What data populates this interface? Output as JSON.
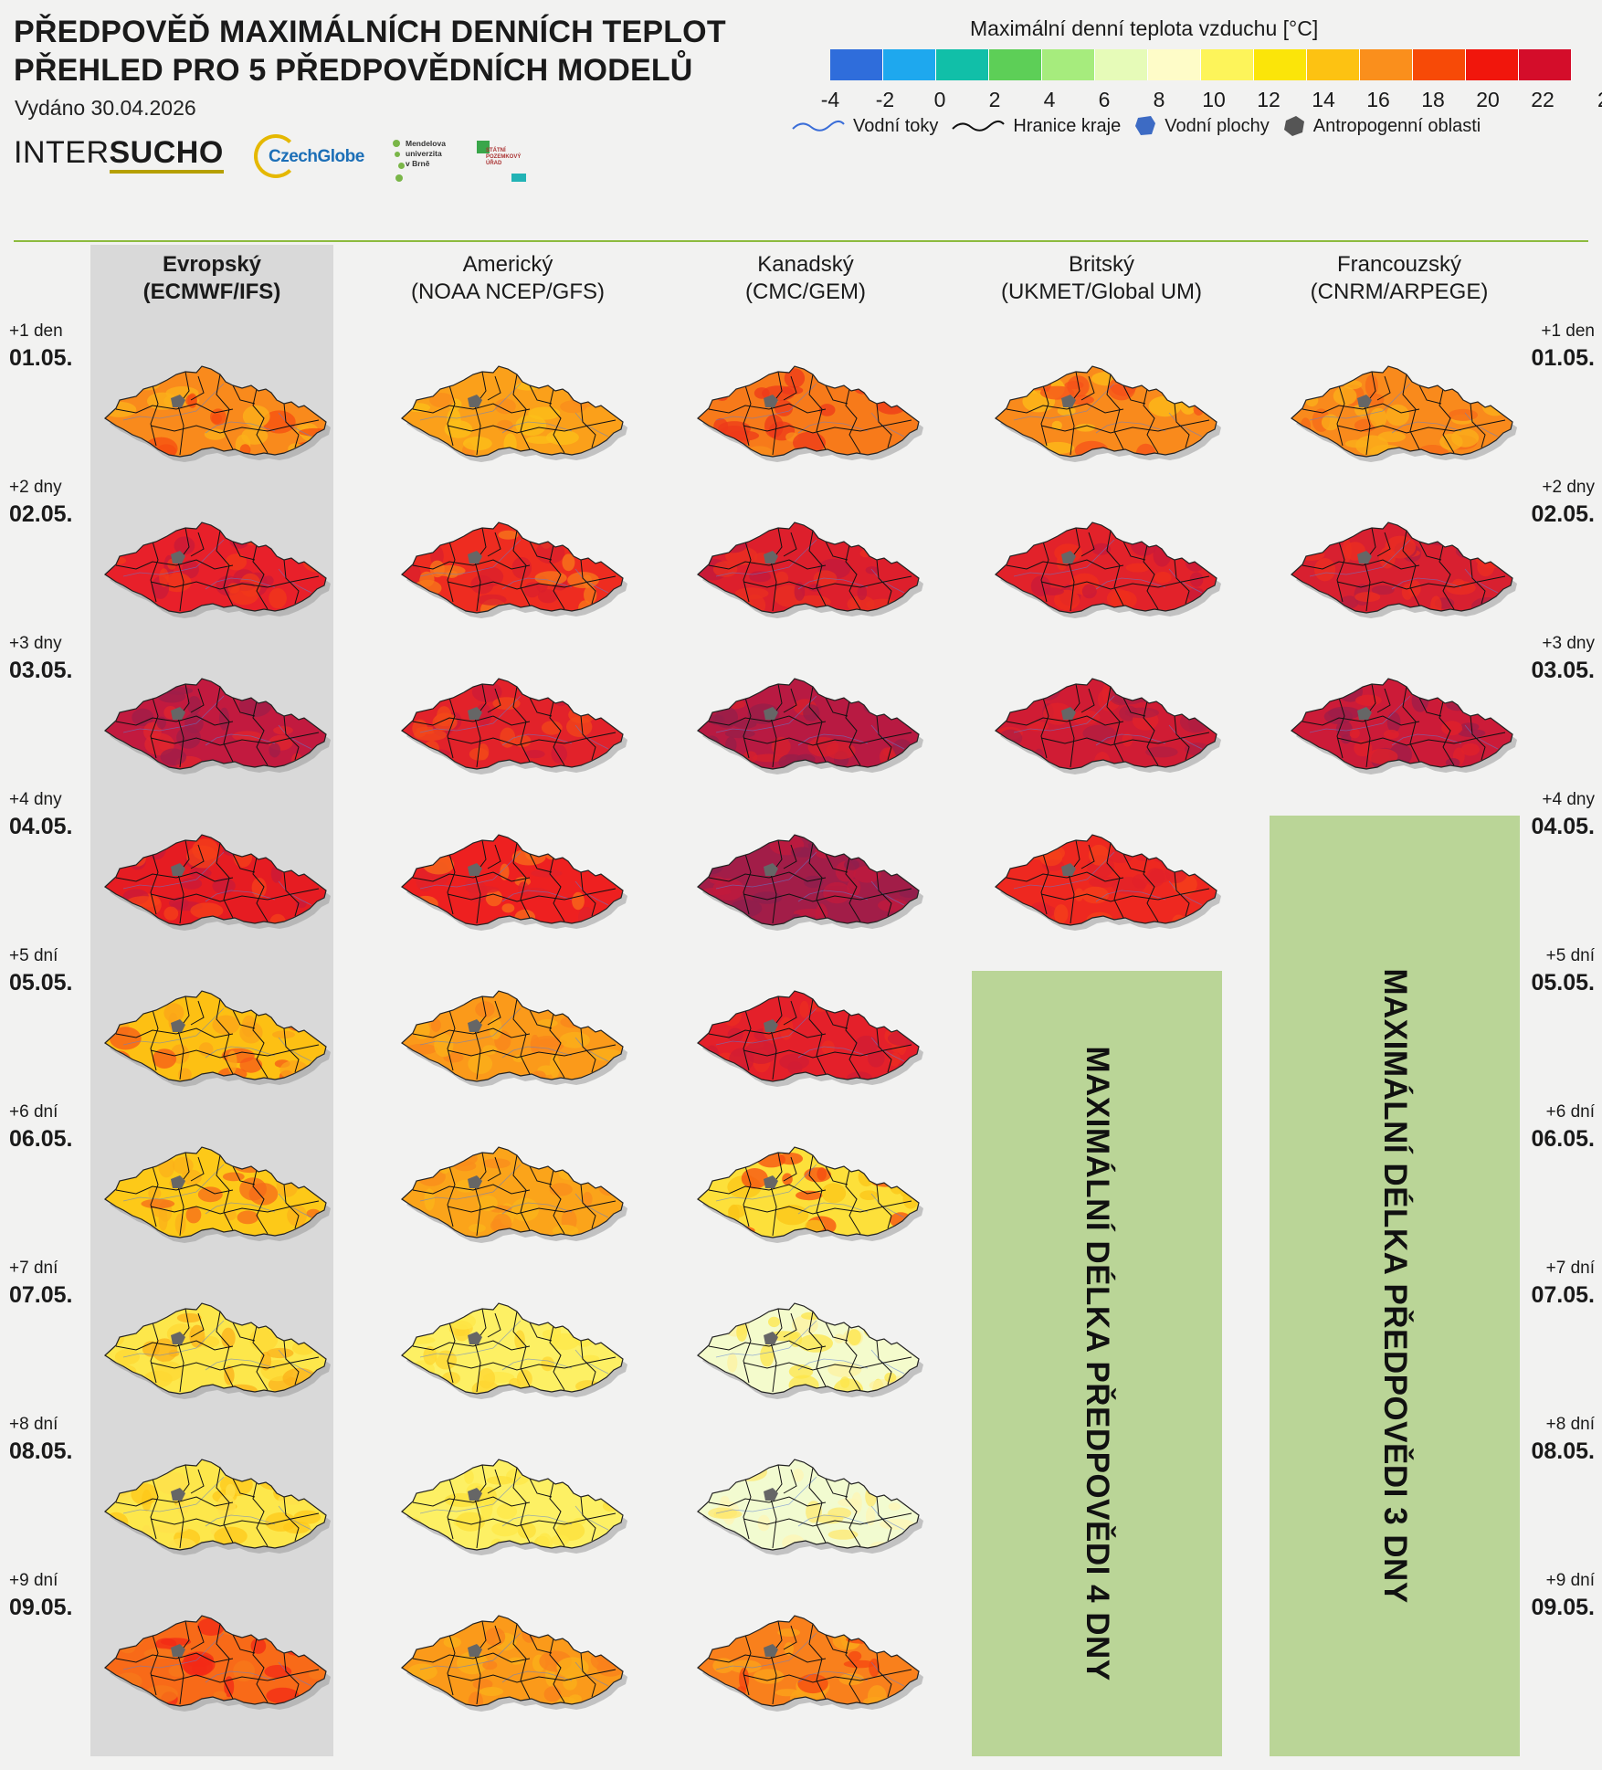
{
  "header": {
    "title_line1": "PŘEDPOVĚĎ MAXIMÁLNÍCH DENNÍCH TEPLOT",
    "title_line2": "PŘEHLED PRO 5 PŘEDPOVĚDNÍCH MODELŮ",
    "issued": "Vydáno 30.04.2026"
  },
  "logos": {
    "intersucho_a": "INTER",
    "intersucho_b": "SUCHO",
    "czechglobe": "CzechGlobe",
    "mendel_l1": "Mendelova",
    "mendel_l2": "univerzita",
    "mendel_l3": "v Brně",
    "spu_l1": "STÁTNÍ",
    "spu_l2": "POZEMKOVÝ",
    "spu_l3": "ÚŘAD"
  },
  "legend": {
    "title": "Maximální denní teplota vzduchu [°C]",
    "colors": [
      "#2f6ddb",
      "#1ea8ee",
      "#11bfa8",
      "#5dcf57",
      "#a6ec7d",
      "#e6fbb8",
      "#fefcc8",
      "#fdf45a",
      "#fbe509",
      "#fdc212",
      "#fa8f1c",
      "#f74a07",
      "#f1160c",
      "#d40d2a"
    ],
    "ticks": [
      "-4",
      "-2",
      "0",
      "2",
      "4",
      "6",
      "8",
      "10",
      "12",
      "14",
      "16",
      "18",
      "20",
      "22",
      "2"
    ],
    "layers": {
      "rivers": "Vodní toky",
      "borders": "Hranice kraje",
      "water": "Vodní plochy",
      "urban": "Antropogenní oblasti"
    }
  },
  "models": [
    {
      "name": "Evropský",
      "code": "(ECMWF/IFS)"
    },
    {
      "name": "Americký",
      "code": "(NOAA NCEP/GFS)"
    },
    {
      "name": "Kanadský",
      "code": "(CMC/GEM)"
    },
    {
      "name": "Britský",
      "code": "(UKMET/Global UM)"
    },
    {
      "name": "Francouzský",
      "code": "(CNRM/ARPEGE)"
    }
  ],
  "days": [
    {
      "offset": "+1 den",
      "date": "01.05."
    },
    {
      "offset": "+2 dny",
      "date": "02.05."
    },
    {
      "offset": "+3 dny",
      "date": "03.05."
    },
    {
      "offset": "+4 dny",
      "date": "04.05."
    },
    {
      "offset": "+5 dní",
      "date": "05.05."
    },
    {
      "offset": "+6 dní",
      "date": "06.05."
    },
    {
      "offset": "+7 dní",
      "date": "07.05."
    },
    {
      "offset": "+8 dní",
      "date": "08.05."
    },
    {
      "offset": "+9 dní",
      "date": "09.05."
    }
  ],
  "forecast_maps": {
    "ECMWF": [
      [
        "#f98a1c",
        "#f54d10",
        "#fbb21a"
      ],
      [
        "#e8202a",
        "#c81a3a",
        "#f2381a"
      ],
      [
        "#c21a3f",
        "#9e1e4a",
        "#e0262d"
      ],
      [
        "#e61c22",
        "#c81a3a",
        "#f4401a"
      ],
      [
        "#fdc013",
        "#fba41a",
        "#f55a18"
      ],
      [
        "#fdc918",
        "#fbb01a",
        "#f66a1a"
      ],
      [
        "#fde74b",
        "#fdd833",
        "#fbb01a"
      ],
      [
        "#fde74b",
        "#fde04b",
        "#fdc81a"
      ],
      [
        "#f86a18",
        "#f32a16",
        "#f77a1a"
      ]
    ],
    "GFS": [
      [
        "#fba01a",
        "#f98c1c",
        "#fcc018"
      ],
      [
        "#ee2c20",
        "#d91f2c",
        "#f77a1a"
      ],
      [
        "#e2222a",
        "#cc1b38",
        "#f1471a"
      ],
      [
        "#ee2020",
        "#e0222a",
        "#f86e1a"
      ],
      [
        "#fb9a1a",
        "#f9841c",
        "#fbb01a"
      ],
      [
        "#fba41a",
        "#f98c1c",
        "#fbb61a"
      ],
      [
        "#fdf064",
        "#fde848",
        "#fdd630"
      ],
      [
        "#fdf064",
        "#fde848",
        "#fce03a"
      ],
      [
        "#fb9a1a",
        "#f9801c",
        "#fbb01a"
      ]
    ],
    "GEM": [
      [
        "#f77a1a",
        "#ee3a1a",
        "#f9901c"
      ],
      [
        "#dd1f2c",
        "#c01a3c",
        "#ea3020"
      ],
      [
        "#b81a42",
        "#951f4a",
        "#d8202c"
      ],
      [
        "#a21d48",
        "#8c1f4e",
        "#c21a3c"
      ],
      [
        "#e4202a",
        "#d01c34",
        "#ec2c22"
      ],
      [
        "#fde03a",
        "#fbc618",
        "#f54d10"
      ],
      [
        "#f4fbcc",
        "#fef2a0",
        "#fde64a"
      ],
      [
        "#f2fbd0",
        "#fef6b6",
        "#fde870"
      ],
      [
        "#f9801c",
        "#f54410",
        "#fba41a"
      ]
    ],
    "UKMET": [
      [
        "#f98a1c",
        "#f5521a",
        "#fcbc18"
      ],
      [
        "#e2222a",
        "#c81a3a",
        "#ef2f1c"
      ],
      [
        "#d01c34",
        "#b01d42",
        "#e2222a"
      ],
      [
        "#ee2820",
        "#e2222a",
        "#f4401a"
      ]
    ],
    "ARPEGE": [
      [
        "#f98a1c",
        "#f56a18",
        "#fbb01a"
      ],
      [
        "#d82030",
        "#b41d40",
        "#ec2e20"
      ],
      [
        "#cc1b38",
        "#9e1e4a",
        "#e2222a"
      ]
    ]
  },
  "unavailable": {
    "UKMET": "MAXIMÁLNÍ DÉLKA PŘEDPOVĚDI 4 DNY",
    "ARPEGE": "MAXIMÁLNÍ DÉLKA PŘEDPOVĚDI 3 DNY"
  }
}
